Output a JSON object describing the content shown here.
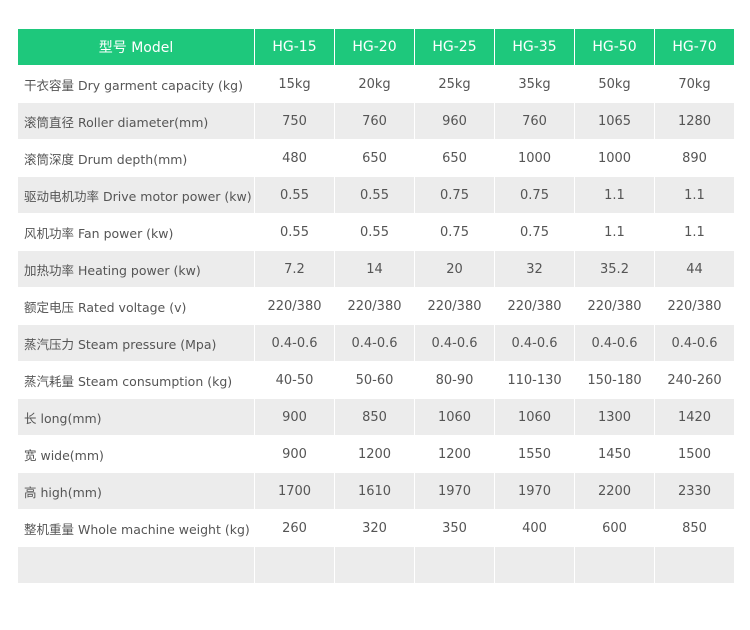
{
  "table": {
    "header": [
      "型号 Model",
      "HG-15",
      "HG-20",
      "HG-25",
      "HG-35",
      "HG-50",
      "HG-70"
    ],
    "rows": [
      [
        "干衣容量  Dry garment capacity  (kg)",
        "15kg",
        "20kg",
        "25kg",
        "35kg",
        "50kg",
        "70kg"
      ],
      [
        "滚筒直径 Roller diameter(mm)",
        "750",
        "760",
        "960",
        "760",
        "1065",
        "1280"
      ],
      [
        "滚筒深度 Drum depth(mm)",
        "480",
        "650",
        "650",
        "1000",
        "1000",
        "890"
      ],
      [
        "驱动电机功率 Drive motor power (kw)",
        "0.55",
        "0.55",
        "0.75",
        "0.75",
        "1.1",
        "1.1"
      ],
      [
        "风机功率  Fan power (kw)",
        "0.55",
        "0.55",
        "0.75",
        "0.75",
        "1.1",
        "1.1"
      ],
      [
        "加热功率  Heating power (kw)",
        "7.2",
        "14",
        "20",
        "32",
        "35.2",
        "44"
      ],
      [
        "额定电压  Rated voltage (v)",
        "220/380",
        "220/380",
        "220/380",
        "220/380",
        "220/380",
        "220/380"
      ],
      [
        "蒸汽压力  Steam pressure (Mpa)",
        "0.4-0.6",
        "0.4-0.6",
        "0.4-0.6",
        "0.4-0.6",
        "0.4-0.6",
        "0.4-0.6"
      ],
      [
        "蒸汽耗量 Steam consumption (kg)",
        "40-50",
        "50-60",
        "80-90",
        "110-130",
        "150-180",
        "240-260"
      ],
      [
        "长 long(mm)",
        "900",
        "850",
        "1060",
        "1060",
        "1300",
        "1420"
      ],
      [
        "宽  wide(mm)",
        "900",
        "1200",
        "1200",
        "1550",
        "1450",
        "1500"
      ],
      [
        "高 high(mm)",
        "1700",
        "1610",
        "1970",
        "1970",
        "2200",
        "2330"
      ],
      [
        "整机重量  Whole machine weight (kg)",
        "260",
        "320",
        "350",
        "400",
        "600",
        "850"
      ]
    ]
  }
}
